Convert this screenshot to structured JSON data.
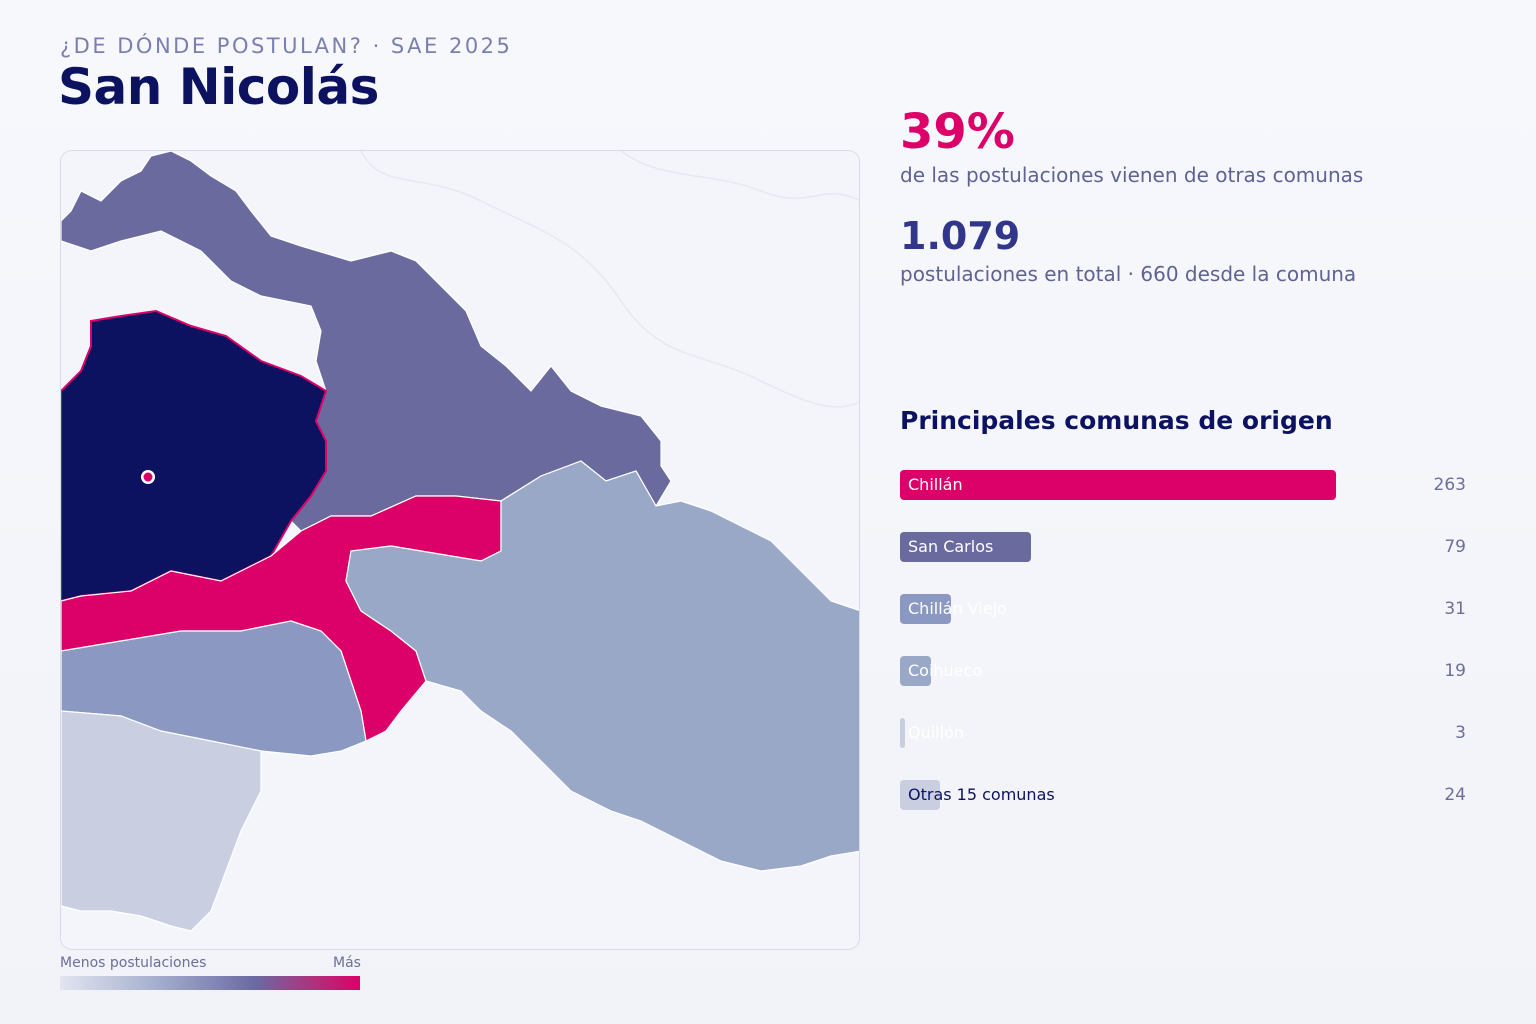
{
  "header": {
    "kicker": "¿DE DÓNDE POSTULAN? · SAE 2025",
    "title": "San Nicolás"
  },
  "stats": {
    "pct_value": "39%",
    "pct_label": "de las postulaciones vienen de otras comunas",
    "total_value": "1.079",
    "total_label": "postulaciones en total · 660 desde la comuna"
  },
  "legend": {
    "less": "Menos postulaciones",
    "more": "Más"
  },
  "colors": {
    "accent": "#dc0069",
    "navy": "#0d1260",
    "purple": "#6b6a9e",
    "steel": "#8b98c1",
    "lightsteel": "#9aa8c8",
    "pale": "#c9cfe0"
  },
  "bars": {
    "title": "Principales comunas de origen",
    "max": 263,
    "items": [
      {
        "label": "Chillán",
        "value": 263,
        "color": "#dc0069",
        "label_dark": false
      },
      {
        "label": "San Carlos",
        "value": 79,
        "color": "#6b6a9e",
        "label_dark": false
      },
      {
        "label": "Chillán Viejo",
        "value": 31,
        "color": "#8b98c1",
        "label_dark": false
      },
      {
        "label": "Coihueco",
        "value": 19,
        "color": "#9aa8c8",
        "label_dark": false
      },
      {
        "label": "Quillón",
        "value": 3,
        "color": "#c9cfe0",
        "label_dark": false
      },
      {
        "label": "Otras 15 comunas",
        "value": 24,
        "color": "#c9cfe0",
        "label_dark": true
      }
    ]
  }
}
